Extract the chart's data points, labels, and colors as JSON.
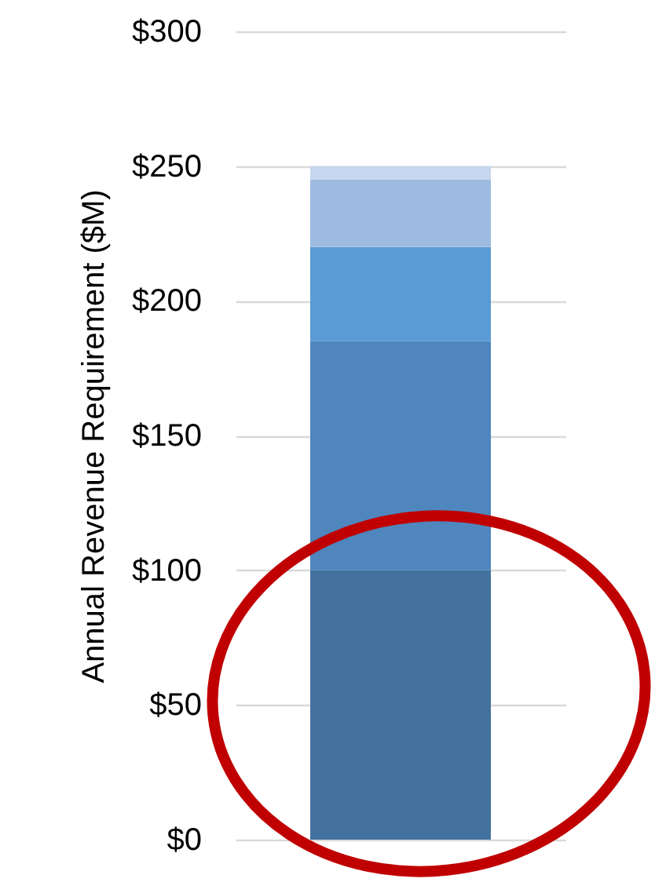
{
  "chart_data": {
    "type": "bar",
    "ylabel": "Annual Revenue Requirement ($M)",
    "categories": [
      null
    ],
    "stacked": true,
    "series": [
      {
        "color": "#44729e",
        "values": [
          100
        ]
      },
      {
        "color": "#4f86bd",
        "values": [
          85
        ]
      },
      {
        "color": "#5b9bd5",
        "values": [
          35
        ]
      },
      {
        "color": "#9dbbe0",
        "values": [
          25
        ]
      },
      {
        "color": "#c5d6ee",
        "values": [
          5
        ]
      }
    ],
    "ylim": [
      0,
      300
    ],
    "yticks": [
      {
        "value": 0,
        "label": "$0"
      },
      {
        "value": 50,
        "label": "$50"
      },
      {
        "value": 100,
        "label": "$100"
      },
      {
        "value": 150,
        "label": "$150"
      },
      {
        "value": 200,
        "label": "$200"
      },
      {
        "value": 250,
        "label": "$250"
      },
      {
        "value": 300,
        "label": "$300"
      }
    ],
    "grid": "y",
    "legend": false
  }
}
